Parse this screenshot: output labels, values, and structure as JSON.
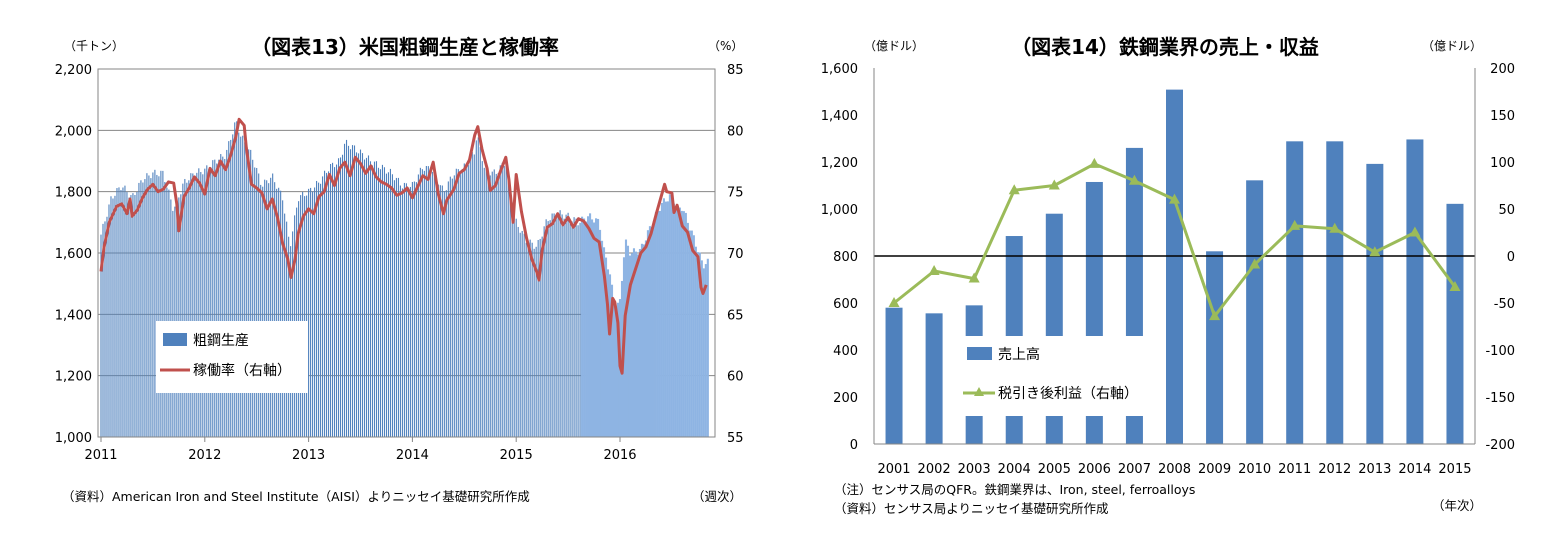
{
  "charts": [
    {
      "title": "（図表13）米国粗鋼生産と稼働率",
      "unit_left": "（千トン）",
      "unit_right": "（%）",
      "x_unit": "（週次）",
      "source": "（資料）American Iron and Steel Institute（AISI）よりニッセイ基礎研究所作成"
    },
    {
      "title": "（図表14）鉄鋼業界の売上・収益",
      "unit_left": "（億ドル）",
      "unit_right": "（億ドル）",
      "x_unit": "（年次）",
      "note": "（注）センサス局のQFR。鉄鋼業界は、Iron, steel, ferroalloys",
      "source": "（資料）センサス局よりニッセイ基礎研究所作成"
    }
  ],
  "chart_data": [
    {
      "type": "bar+line",
      "frequency": "weekly",
      "x_tick_labels": [
        "2011",
        "2012",
        "2013",
        "2014",
        "2015",
        "2016"
      ],
      "y_left": {
        "min": 1000,
        "max": 2200,
        "ticks": [
          1000,
          1200,
          1400,
          1600,
          1800,
          2000,
          2200
        ],
        "tick_labels": [
          "1,000",
          "1,200",
          "1,400",
          "1,600",
          "1,800",
          "2,000",
          "2,200"
        ]
      },
      "y_right": {
        "min": 55,
        "max": 85,
        "ticks": [
          55,
          60,
          65,
          70,
          75,
          80,
          85
        ],
        "tick_labels": [
          "55",
          "60",
          "65",
          "70",
          "75",
          "80",
          "85"
        ]
      },
      "grid": true,
      "legend_position": "bottom-left",
      "series": [
        {
          "name": "粗鋼生産",
          "type": "bar",
          "axis": "left",
          "color": "#4f81bd",
          "color_late": "#8eb4e3",
          "keypoints": [
            [
              2011.0,
              1660
            ],
            [
              2011.05,
              1720
            ],
            [
              2011.1,
              1780
            ],
            [
              2011.2,
              1820
            ],
            [
              2011.3,
              1780
            ],
            [
              2011.4,
              1840
            ],
            [
              2011.5,
              1860
            ],
            [
              2011.6,
              1860
            ],
            [
              2011.7,
              1740
            ],
            [
              2011.8,
              1830
            ],
            [
              2011.9,
              1860
            ],
            [
              2012.0,
              1870
            ],
            [
              2012.1,
              1900
            ],
            [
              2012.2,
              1920
            ],
            [
              2012.3,
              2030
            ],
            [
              2012.35,
              1980
            ],
            [
              2012.45,
              1920
            ],
            [
              2012.55,
              1820
            ],
            [
              2012.65,
              1850
            ],
            [
              2012.75,
              1780
            ],
            [
              2012.82,
              1620
            ],
            [
              2012.9,
              1780
            ],
            [
              2013.0,
              1800
            ],
            [
              2013.1,
              1830
            ],
            [
              2013.2,
              1880
            ],
            [
              2013.3,
              1900
            ],
            [
              2013.35,
              1960
            ],
            [
              2013.45,
              1940
            ],
            [
              2013.6,
              1900
            ],
            [
              2013.7,
              1880
            ],
            [
              2013.8,
              1860
            ],
            [
              2013.9,
              1820
            ],
            [
              2014.0,
              1820
            ],
            [
              2014.1,
              1880
            ],
            [
              2014.2,
              1870
            ],
            [
              2014.3,
              1800
            ],
            [
              2014.4,
              1860
            ],
            [
              2014.5,
              1880
            ],
            [
              2014.6,
              1930
            ],
            [
              2014.62,
              1990
            ],
            [
              2014.7,
              1870
            ],
            [
              2014.8,
              1860
            ],
            [
              2014.9,
              1900
            ],
            [
              2015.0,
              1700
            ],
            [
              2015.1,
              1640
            ],
            [
              2015.2,
              1620
            ],
            [
              2015.3,
              1710
            ],
            [
              2015.4,
              1730
            ],
            [
              2015.5,
              1720
            ],
            [
              2015.6,
              1700
            ],
            [
              2015.7,
              1720
            ],
            [
              2015.8,
              1700
            ],
            [
              2015.85,
              1600
            ],
            [
              2015.9,
              1540
            ],
            [
              2015.95,
              1420
            ],
            [
              2016.0,
              1440
            ],
            [
              2016.05,
              1640
            ],
            [
              2016.1,
              1600
            ],
            [
              2016.2,
              1610
            ],
            [
              2016.3,
              1690
            ],
            [
              2016.4,
              1760
            ],
            [
              2016.5,
              1790
            ],
            [
              2016.55,
              1740
            ],
            [
              2016.6,
              1750
            ],
            [
              2016.7,
              1660
            ],
            [
              2016.8,
              1560
            ],
            [
              2016.85,
              1570
            ]
          ]
        },
        {
          "name": "稼働率（右軸）",
          "type": "line",
          "axis": "right",
          "color": "#c0504d",
          "keypoints": [
            [
              2011.0,
              68.5
            ],
            [
              2011.03,
              70.5
            ],
            [
              2011.08,
              72.5
            ],
            [
              2011.15,
              73.8
            ],
            [
              2011.2,
              74.0
            ],
            [
              2011.25,
              73.2
            ],
            [
              2011.28,
              74.4
            ],
            [
              2011.3,
              73.0
            ],
            [
              2011.35,
              73.5
            ],
            [
              2011.4,
              74.5
            ],
            [
              2011.45,
              75.2
            ],
            [
              2011.5,
              75.6
            ],
            [
              2011.55,
              75.0
            ],
            [
              2011.6,
              75.2
            ],
            [
              2011.65,
              75.8
            ],
            [
              2011.7,
              75.7
            ],
            [
              2011.73,
              74.0
            ],
            [
              2011.75,
              71.8
            ],
            [
              2011.8,
              74.6
            ],
            [
              2011.85,
              75.3
            ],
            [
              2011.9,
              76.2
            ],
            [
              2011.95,
              75.7
            ],
            [
              2012.0,
              74.8
            ],
            [
              2012.05,
              76.9
            ],
            [
              2012.1,
              76.3
            ],
            [
              2012.15,
              77.5
            ],
            [
              2012.2,
              76.8
            ],
            [
              2012.25,
              78.0
            ],
            [
              2012.3,
              79.5
            ],
            [
              2012.33,
              80.9
            ],
            [
              2012.38,
              80.4
            ],
            [
              2012.4,
              78.6
            ],
            [
              2012.45,
              75.6
            ],
            [
              2012.5,
              75.3
            ],
            [
              2012.55,
              74.9
            ],
            [
              2012.6,
              73.6
            ],
            [
              2012.65,
              74.4
            ],
            [
              2012.7,
              72.9
            ],
            [
              2012.75,
              70.8
            ],
            [
              2012.8,
              69.5
            ],
            [
              2012.83,
              68.0
            ],
            [
              2012.87,
              69.5
            ],
            [
              2012.9,
              71.6
            ],
            [
              2012.95,
              73.0
            ],
            [
              2013.0,
              73.6
            ],
            [
              2013.05,
              73.2
            ],
            [
              2013.1,
              74.6
            ],
            [
              2013.15,
              75.0
            ],
            [
              2013.2,
              76.4
            ],
            [
              2013.25,
              75.5
            ],
            [
              2013.3,
              76.9
            ],
            [
              2013.35,
              77.4
            ],
            [
              2013.4,
              76.3
            ],
            [
              2013.45,
              77.8
            ],
            [
              2013.5,
              77.3
            ],
            [
              2013.55,
              76.5
            ],
            [
              2013.6,
              77.1
            ],
            [
              2013.65,
              76.2
            ],
            [
              2013.7,
              75.8
            ],
            [
              2013.75,
              75.6
            ],
            [
              2013.8,
              75.3
            ],
            [
              2013.85,
              74.7
            ],
            [
              2013.9,
              74.9
            ],
            [
              2013.95,
              75.3
            ],
            [
              2014.0,
              74.5
            ],
            [
              2014.05,
              75.4
            ],
            [
              2014.1,
              76.3
            ],
            [
              2014.15,
              76.0
            ],
            [
              2014.2,
              77.4
            ],
            [
              2014.25,
              74.8
            ],
            [
              2014.3,
              73.2
            ],
            [
              2014.33,
              74.3
            ],
            [
              2014.4,
              75.2
            ],
            [
              2014.45,
              76.5
            ],
            [
              2014.5,
              76.8
            ],
            [
              2014.55,
              77.6
            ],
            [
              2014.6,
              79.6
            ],
            [
              2014.63,
              80.3
            ],
            [
              2014.67,
              78.5
            ],
            [
              2014.72,
              76.9
            ],
            [
              2014.75,
              75.1
            ],
            [
              2014.8,
              75.5
            ],
            [
              2014.85,
              76.7
            ],
            [
              2014.9,
              77.8
            ],
            [
              2014.93,
              76.0
            ],
            [
              2014.97,
              72.5
            ],
            [
              2015.0,
              76.4
            ],
            [
              2015.05,
              73.4
            ],
            [
              2015.1,
              71.2
            ],
            [
              2015.15,
              69.5
            ],
            [
              2015.2,
              68.4
            ],
            [
              2015.22,
              67.8
            ],
            [
              2015.25,
              70.2
            ],
            [
              2015.3,
              72.1
            ],
            [
              2015.35,
              72.4
            ],
            [
              2015.4,
              73.2
            ],
            [
              2015.45,
              72.3
            ],
            [
              2015.5,
              72.9
            ],
            [
              2015.55,
              72.1
            ],
            [
              2015.6,
              72.8
            ],
            [
              2015.65,
              72.6
            ],
            [
              2015.7,
              72.0
            ],
            [
              2015.75,
              71.2
            ],
            [
              2015.8,
              70.9
            ],
            [
              2015.85,
              68.1
            ],
            [
              2015.88,
              65.8
            ],
            [
              2015.9,
              63.4
            ],
            [
              2015.93,
              66.3
            ],
            [
              2015.95,
              66.0
            ],
            [
              2015.98,
              64.3
            ],
            [
              2016.0,
              60.8
            ],
            [
              2016.02,
              60.2
            ],
            [
              2016.05,
              64.9
            ],
            [
              2016.1,
              67.4
            ],
            [
              2016.15,
              68.7
            ],
            [
              2016.2,
              70.0
            ],
            [
              2016.25,
              70.5
            ],
            [
              2016.3,
              71.6
            ],
            [
              2016.35,
              73.2
            ],
            [
              2016.4,
              74.7
            ],
            [
              2016.43,
              75.6
            ],
            [
              2016.45,
              75.0
            ],
            [
              2016.5,
              74.9
            ],
            [
              2016.52,
              73.3
            ],
            [
              2016.55,
              73.9
            ],
            [
              2016.6,
              72.2
            ],
            [
              2016.65,
              71.7
            ],
            [
              2016.7,
              70.2
            ],
            [
              2016.75,
              69.7
            ],
            [
              2016.78,
              67.2
            ],
            [
              2016.8,
              66.7
            ],
            [
              2016.83,
              67.4
            ]
          ]
        }
      ]
    },
    {
      "type": "bar+line",
      "categories": [
        "2001",
        "2002",
        "2003",
        "2004",
        "2005",
        "2006",
        "2007",
        "2008",
        "2009",
        "2010",
        "2011",
        "2012",
        "2013",
        "2014",
        "2015"
      ],
      "y_left": {
        "min": 0,
        "max": 1600,
        "ticks": [
          0,
          200,
          400,
          600,
          800,
          1000,
          1200,
          1400,
          1600
        ],
        "tick_labels": [
          "0",
          "200",
          "400",
          "600",
          "800",
          "1,000",
          "1,200",
          "1,400",
          "1,600"
        ]
      },
      "y_right": {
        "min": -200,
        "max": 200,
        "ticks": [
          -200,
          -150,
          -100,
          -50,
          0,
          50,
          100,
          150,
          200
        ],
        "tick_labels": [
          "-200",
          "-150",
          "-100",
          "-50",
          "0",
          "50",
          "100",
          "150",
          "200"
        ]
      },
      "zero_line_right": 0,
      "legend_position": "bottom-left",
      "series": [
        {
          "name": "売上高",
          "type": "bar",
          "axis": "left",
          "color": "#4f81bd",
          "values": [
            580,
            556,
            590,
            885,
            980,
            1115,
            1260,
            1508,
            820,
            1122,
            1288,
            1288,
            1192,
            1296,
            1022
          ]
        },
        {
          "name": "税引き後利益（右軸）",
          "type": "line",
          "axis": "right",
          "color": "#9bbb59",
          "values": [
            -50,
            -16,
            -24,
            70,
            75,
            98,
            80,
            60,
            -64,
            -9,
            32,
            29,
            4,
            25,
            -33
          ]
        }
      ]
    }
  ]
}
